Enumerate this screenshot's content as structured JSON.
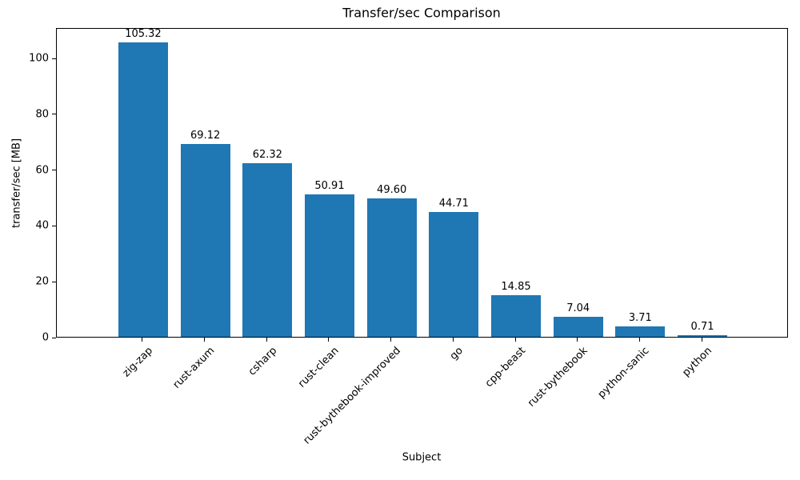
{
  "chart_data": {
    "type": "bar",
    "title": "Transfer/sec Comparison",
    "xlabel": "Subject",
    "ylabel": "transfer/sec [MB]",
    "categories": [
      "zig-zap",
      "rust-axum",
      "csharp",
      "rust-clean",
      "rust-bythebook-improved",
      "go",
      "cpp-beast",
      "rust-bythebook",
      "python-sanic",
      "python"
    ],
    "values": [
      105.32,
      69.12,
      62.32,
      50.91,
      49.6,
      44.71,
      14.85,
      7.04,
      3.71,
      0.71
    ],
    "value_labels": [
      "105.32",
      "69.12",
      "62.32",
      "50.91",
      "49.60",
      "44.71",
      "14.85",
      "7.04",
      "3.71",
      "0.71"
    ],
    "yticks": [
      "0",
      "20",
      "40",
      "60",
      "80",
      "100"
    ],
    "ytick_values": [
      0,
      20,
      40,
      60,
      80,
      100
    ],
    "ylim": [
      0,
      110.9
    ],
    "bar_color": "#1f77b4",
    "grid": false,
    "legend_position": "none",
    "x_tick_rotation_deg": 45
  }
}
